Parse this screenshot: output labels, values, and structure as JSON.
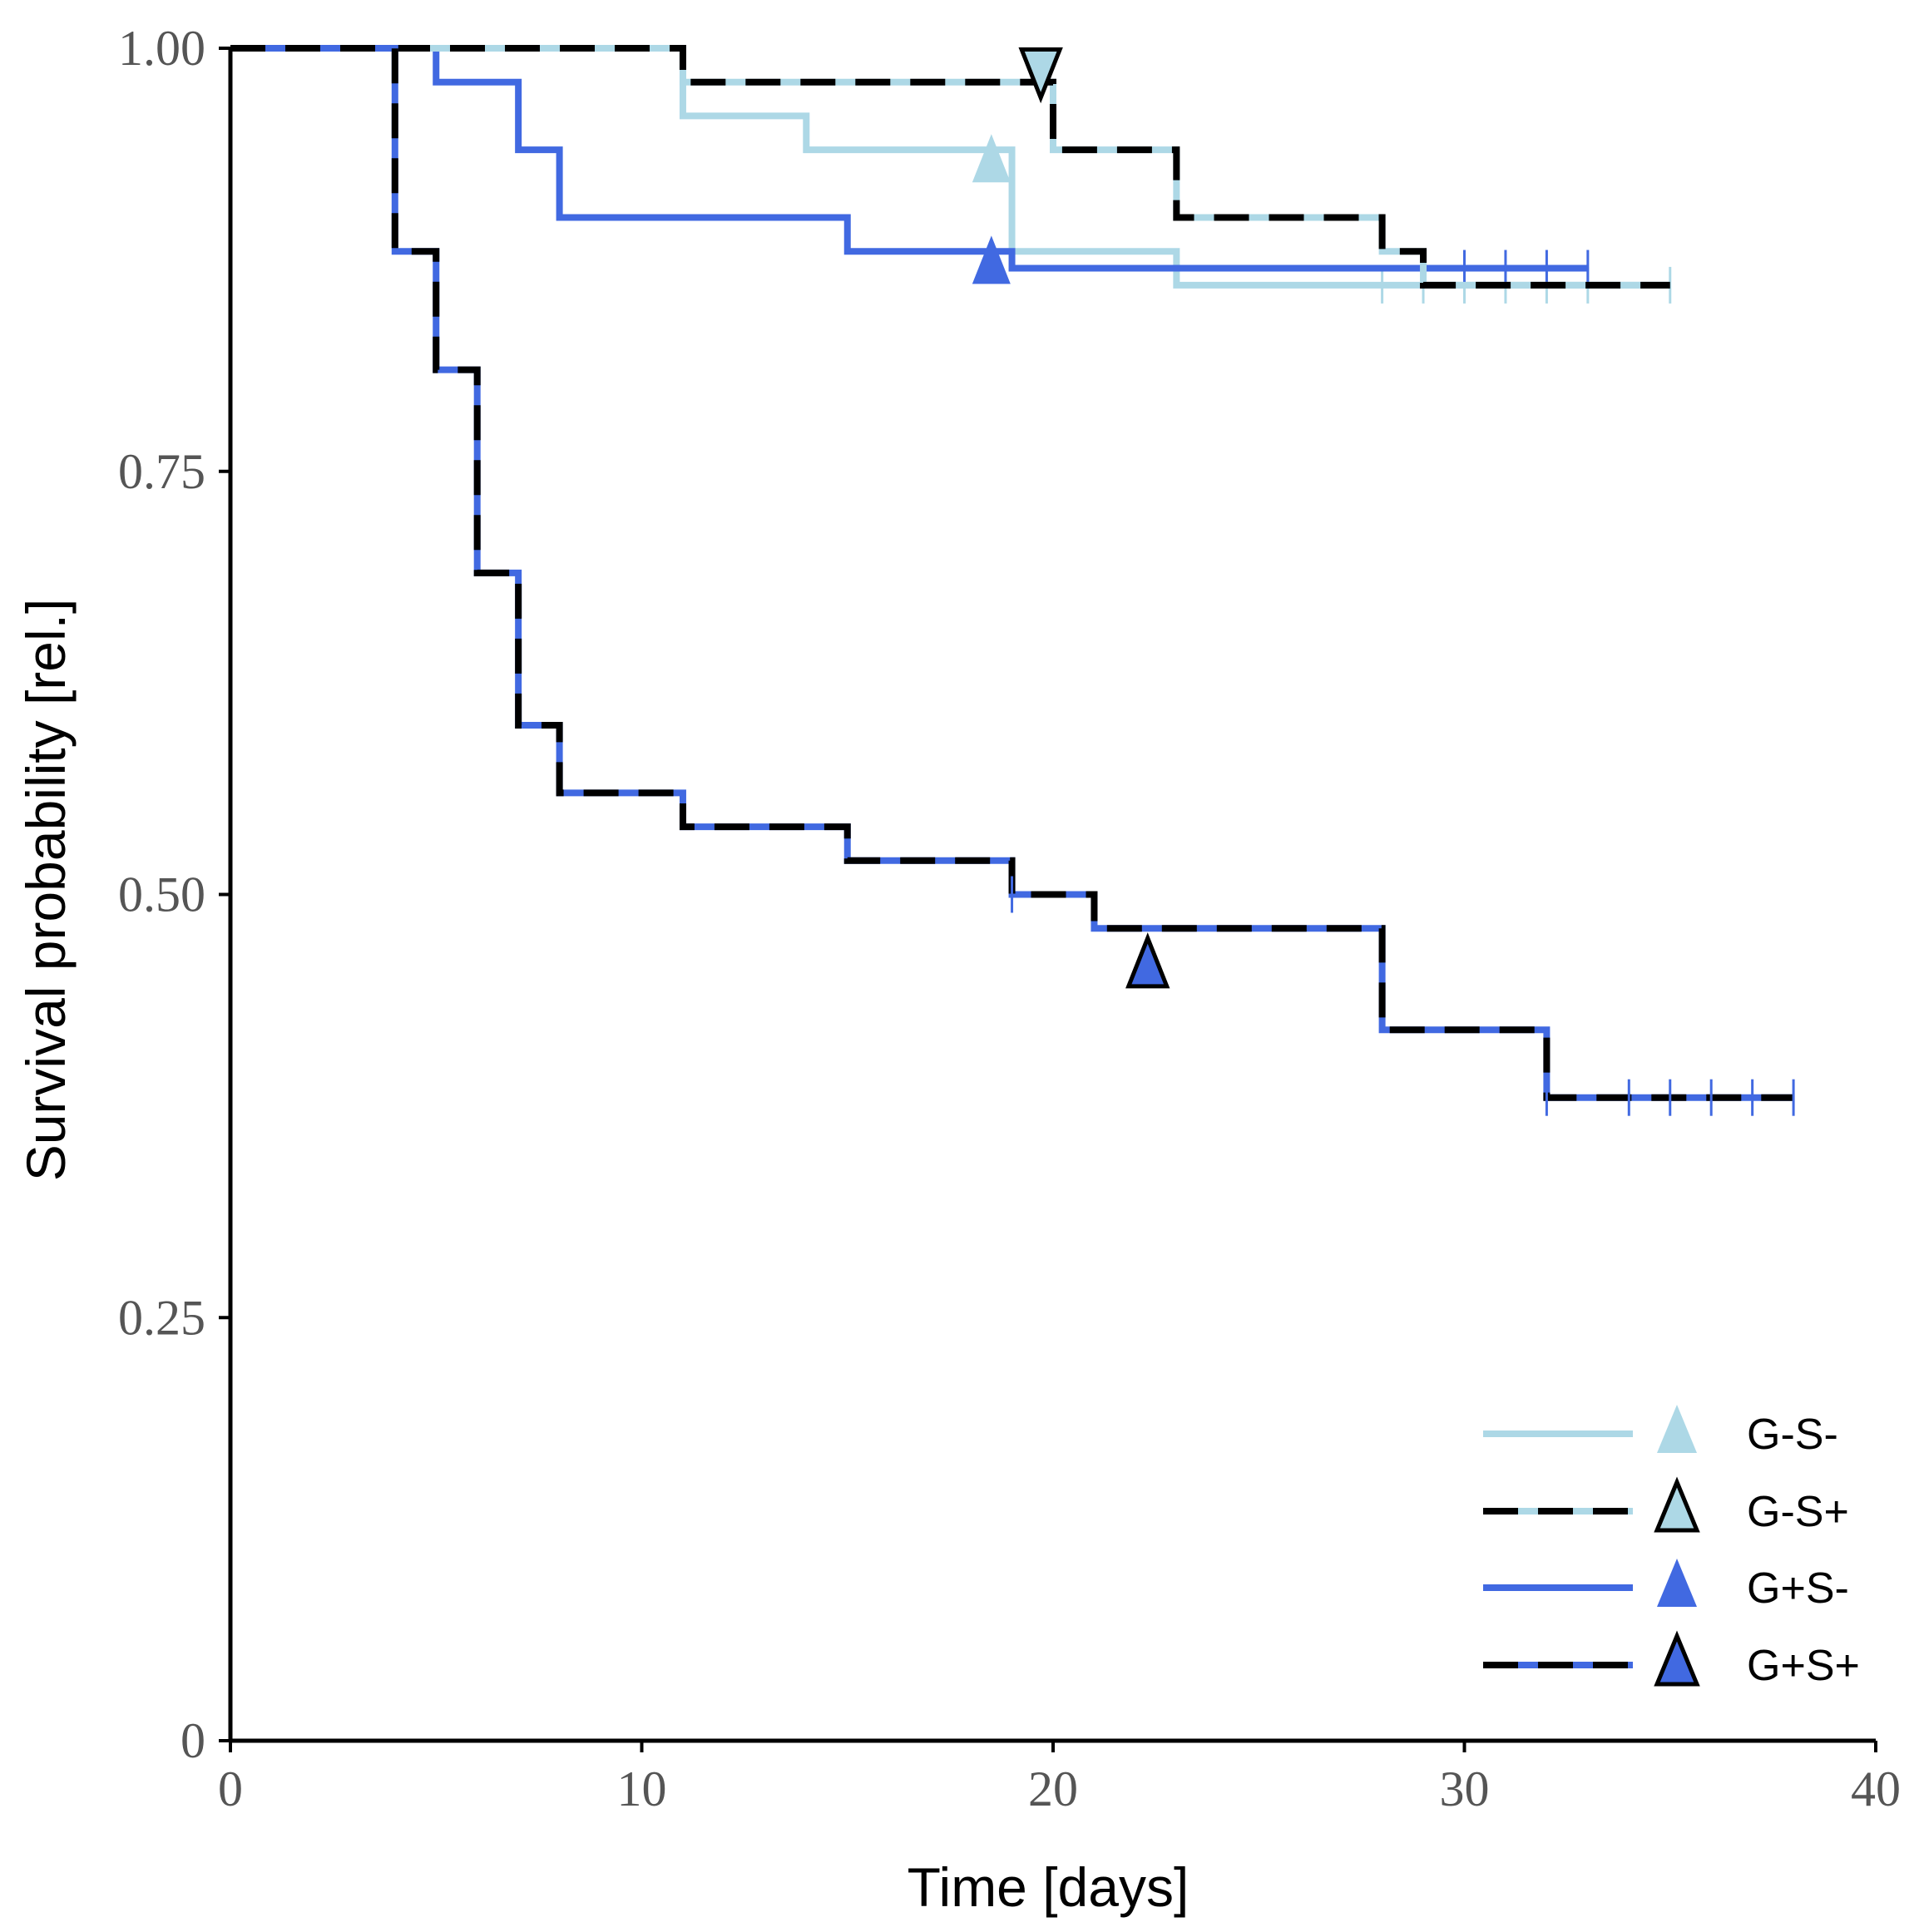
{
  "chart_data": {
    "type": "line",
    "subtype": "kaplan-meier-step",
    "title": "",
    "xlabel": "Time [days]",
    "ylabel": "Survival probability [rel.]",
    "xlim": [
      0,
      40
    ],
    "ylim": [
      0,
      1
    ],
    "x_ticks": [
      0,
      10,
      20,
      30,
      40
    ],
    "x_tick_labels": [
      "0",
      "10",
      "20",
      "30",
      "40"
    ],
    "y_ticks": [
      0,
      0.25,
      0.5,
      0.75,
      1.0
    ],
    "y_tick_labels": [
      "0",
      "0.25",
      "0.50",
      "0.75",
      "1.00"
    ],
    "grid": false,
    "legend_position": "bottom-right",
    "colors": {
      "light_blue": "#add8e6",
      "royal_blue": "#4169e1",
      "black": "#000000",
      "axis": "#000000"
    },
    "series": [
      {
        "name": "G-S-",
        "style": "solid",
        "color": "#add8e6",
        "dash_color": null,
        "marker": {
          "x": 18.5,
          "y": 0.935,
          "direction": "up",
          "fill": "#add8e6",
          "outlined": false
        },
        "steps": [
          [
            0,
            1.0
          ],
          [
            11,
            0.96
          ],
          [
            14,
            0.94
          ],
          [
            19,
            0.88
          ],
          [
            23,
            0.86
          ],
          [
            35,
            0.86
          ]
        ],
        "censored": [
          [
            28,
            0.86
          ],
          [
            29,
            0.86
          ],
          [
            30,
            0.86
          ],
          [
            31,
            0.86
          ],
          [
            32,
            0.86
          ],
          [
            33,
            0.86
          ],
          [
            35,
            0.86
          ]
        ]
      },
      {
        "name": "G-S+",
        "style": "dashed",
        "color": "#add8e6",
        "dash_color": "#000000",
        "marker": {
          "x": 19.7,
          "y": 0.985,
          "direction": "down",
          "fill": "#add8e6",
          "outlined": true
        },
        "steps": [
          [
            0,
            1.0
          ],
          [
            11,
            0.98
          ],
          [
            20,
            0.94
          ],
          [
            23,
            0.9
          ],
          [
            28,
            0.88
          ],
          [
            29,
            0.86
          ],
          [
            35,
            0.86
          ]
        ],
        "censored": []
      },
      {
        "name": "G+S-",
        "style": "solid",
        "color": "#4169e1",
        "dash_color": null,
        "marker": {
          "x": 18.5,
          "y": 0.875,
          "direction": "up",
          "fill": "#4169e1",
          "outlined": false
        },
        "steps": [
          [
            0,
            1.0
          ],
          [
            5,
            0.98
          ],
          [
            7,
            0.94
          ],
          [
            8,
            0.9
          ],
          [
            15,
            0.88
          ],
          [
            19,
            0.87
          ],
          [
            33,
            0.87
          ]
        ],
        "censored": [
          [
            30,
            0.87
          ],
          [
            31,
            0.87
          ],
          [
            32,
            0.87
          ],
          [
            33,
            0.87
          ]
        ]
      },
      {
        "name": "G+S+",
        "style": "dashed",
        "color": "#4169e1",
        "dash_color": "#000000",
        "marker": {
          "x": 22.3,
          "y": 0.46,
          "direction": "up",
          "fill": "#4169e1",
          "outlined": true
        },
        "steps": [
          [
            0,
            1.0
          ],
          [
            4,
            0.88
          ],
          [
            5,
            0.81
          ],
          [
            6,
            0.69
          ],
          [
            7,
            0.6
          ],
          [
            8,
            0.56
          ],
          [
            11,
            0.54
          ],
          [
            15,
            0.52
          ],
          [
            19,
            0.5
          ],
          [
            21,
            0.48
          ],
          [
            28,
            0.42
          ],
          [
            32,
            0.38
          ],
          [
            38,
            0.38
          ]
        ],
        "censored": [
          [
            19,
            0.5
          ],
          [
            32,
            0.38
          ],
          [
            34,
            0.38
          ],
          [
            35,
            0.38
          ],
          [
            36,
            0.38
          ],
          [
            37,
            0.38
          ],
          [
            38,
            0.38
          ]
        ]
      }
    ]
  }
}
